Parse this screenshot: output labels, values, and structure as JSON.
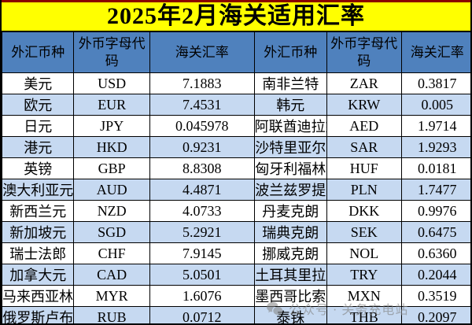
{
  "title": "2025年2月海关适用汇率",
  "table": {
    "headers": [
      "外汇币种",
      "外币字母代码",
      "海关汇率",
      "外汇币种",
      "外币字母代码",
      "海关汇率"
    ],
    "left_rows": [
      {
        "name": "美元",
        "code": "USD",
        "rate": "7.1883"
      },
      {
        "name": "欧元",
        "code": "EUR",
        "rate": "7.4531"
      },
      {
        "name": "日元",
        "code": "JPY",
        "rate": "0.045978"
      },
      {
        "name": "港元",
        "code": "HKD",
        "rate": "0.9231"
      },
      {
        "name": "英镑",
        "code": "GBP",
        "rate": "8.8308"
      },
      {
        "name": "澳大利亚元",
        "code": "AUD",
        "rate": "4.4871"
      },
      {
        "name": "新西兰元",
        "code": "NZD",
        "rate": "4.0733"
      },
      {
        "name": "新加坡元",
        "code": "SGD",
        "rate": "5.2921"
      },
      {
        "name": "瑞士法郎",
        "code": "CHF",
        "rate": "7.9145"
      },
      {
        "name": "加拿大元",
        "code": "CAD",
        "rate": "5.0501"
      },
      {
        "name": "马来西亚林吉特",
        "code": "MYR",
        "rate": "1.6076"
      },
      {
        "name": "俄罗斯卢布",
        "code": "RUB",
        "rate": "0.0712"
      }
    ],
    "right_rows": [
      {
        "name": "南非兰特",
        "code": "ZAR",
        "rate": "0.3817"
      },
      {
        "name": "韩元",
        "code": "KRW",
        "rate": "0.005"
      },
      {
        "name": "阿联酋迪拉姆",
        "code": "AED",
        "rate": "1.9714"
      },
      {
        "name": "沙特里亚尔",
        "code": "SAR",
        "rate": "1.9293"
      },
      {
        "name": "匈牙利福林",
        "code": "HUF",
        "rate": "0.0181"
      },
      {
        "name": "波兰兹罗提",
        "code": "PLN",
        "rate": "1.7477"
      },
      {
        "name": "丹麦克朗",
        "code": "DKK",
        "rate": "0.9976"
      },
      {
        "name": "瑞典克朗",
        "code": "SEK",
        "rate": "0.6475"
      },
      {
        "name": "挪威克朗",
        "code": "NOL",
        "rate": "0.6360"
      },
      {
        "name": "土耳其里拉",
        "code": "TRY",
        "rate": "0.2044"
      },
      {
        "name": "墨西哥比索",
        "code": "MXN",
        "rate": "0.3519"
      },
      {
        "name": "泰铢",
        "code": "THB",
        "rate": "0.2097"
      }
    ]
  },
  "watermark": {
    "icon": "wechat-icon",
    "text": "公众号 · 关务充电站"
  },
  "colors": {
    "title_bg": "#FFFF00",
    "title_top_line": "#8B0000",
    "header_bg": "#4F81BD",
    "row_bg": "#FFFFFF",
    "row_alt_bg": "#C6D9F1",
    "border": "#000000",
    "text": "#000000",
    "watermark_text": "#828282"
  }
}
